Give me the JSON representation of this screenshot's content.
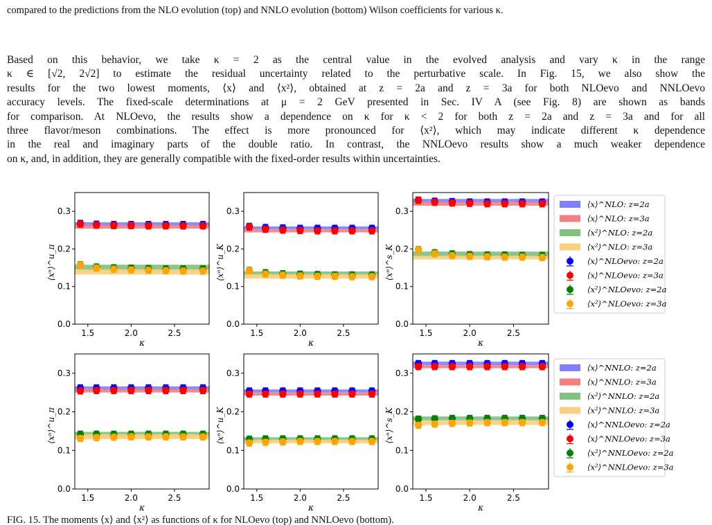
{
  "caption_top": "compared to the predictions from the NLO evolution (top) and NNLO evolution (bottom) Wilson coefficients for various κ.",
  "paragraph_lines": [
    "Based on this behavior, we take κ = 2 as the central value in the evolved analysis and vary κ in the range",
    "κ ∈ [√2, 2√2] to estimate the residual uncertainty related to the perturbative scale. In Fig. 15, we also show the",
    "results for the two lowest moments, ⟨x⟩ and ⟨x²⟩, obtained at z = 2a and z = 3a for both NLOevo and NNLOevo",
    "accuracy levels. The fixed-scale determinations at μ = 2 GeV presented in Sec. IV A (see Fig. 8) are shown as bands",
    "for comparison. At NLOevo, the results show a dependence on κ for κ < 2 for both z = 2a and z = 3a and for all",
    "three flavor/meson combinations. The effect is more pronounced for ⟨x²⟩, which may indicate different κ dependence",
    "in the real and imaginary parts of the double ratio. In contrast, the NNLOevo results show a much weaker dependence",
    "on κ, and, in addition, they are generally compatible with the fixed-order results within uncertainties."
  ],
  "caption_bottom": "FIG. 15. The moments ⟨x⟩ and ⟨x²⟩ as functions of κ for NLOevo (top) and NNLOevo (bottom).",
  "colors": {
    "blue_band": "#8080ff",
    "red_band": "#f28080",
    "green_band": "#80c080",
    "orange_band": "#f8d080",
    "blue_point": "#0000ff",
    "red_point": "#ff0000",
    "green_point": "#008000",
    "orange_point": "#ffa500"
  },
  "legends": [
    {
      "entries": [
        {
          "label": "⟨x⟩^NLO: z=2a",
          "kind": "band",
          "color": "blue"
        },
        {
          "label": "⟨x⟩^NLO: z=3a",
          "kind": "band",
          "color": "red"
        },
        {
          "label": "⟨x²⟩^NLO: z=2a",
          "kind": "band",
          "color": "green"
        },
        {
          "label": "⟨x²⟩^NLO: z=3a",
          "kind": "band",
          "color": "orange"
        },
        {
          "label": "⟨x⟩^NLOevo: z=2a",
          "kind": "point",
          "color": "blue"
        },
        {
          "label": "⟨x⟩^NLOevo: z=3a",
          "kind": "point",
          "color": "red"
        },
        {
          "label": "⟨x²⟩^NLOevo: z=2a",
          "kind": "point",
          "color": "green"
        },
        {
          "label": "⟨x²⟩^NLOevo: z=3a",
          "kind": "point",
          "color": "orange"
        }
      ]
    },
    {
      "entries": [
        {
          "label": "⟨x⟩^NNLO: z=2a",
          "kind": "band",
          "color": "blue"
        },
        {
          "label": "⟨x⟩^NNLO: z=3a",
          "kind": "band",
          "color": "red"
        },
        {
          "label": "⟨x²⟩^NNLO: z=2a",
          "kind": "band",
          "color": "green"
        },
        {
          "label": "⟨x²⟩^NNLO: z=3a",
          "kind": "band",
          "color": "orange"
        },
        {
          "label": "⟨x⟩^NNLOevo: z=2a",
          "kind": "point",
          "color": "blue"
        },
        {
          "label": "⟨x⟩^NNLOevo: z=3a",
          "kind": "point",
          "color": "red"
        },
        {
          "label": "⟨x²⟩^NNLOevo: z=2a",
          "kind": "point",
          "color": "green"
        },
        {
          "label": "⟨x²⟩^NNLOevo: z=3a",
          "kind": "point",
          "color": "orange"
        }
      ]
    }
  ],
  "chart_data": [
    {
      "type": "scatter",
      "panel": "top-left",
      "ylabel": "⟨xⁿ⟩^u_π",
      "xlabel": "κ",
      "xlim": [
        1.35,
        2.9
      ],
      "ylim": [
        0.0,
        0.35
      ],
      "xticks": [
        "1.5",
        "2.0",
        "2.5"
      ],
      "yticks": [
        "0.0",
        "0.1",
        "0.2",
        "0.3"
      ],
      "x": [
        1.414,
        1.6,
        1.8,
        2.0,
        2.2,
        2.4,
        2.6,
        2.828
      ],
      "series": [
        {
          "color": "blue",
          "band": [
            0.261,
            0.271
          ],
          "values": [
            0.268,
            0.266,
            0.265,
            0.265,
            0.265,
            0.265,
            0.265,
            0.265
          ]
        },
        {
          "color": "red",
          "band": [
            0.254,
            0.264
          ],
          "values": [
            0.266,
            0.263,
            0.262,
            0.262,
            0.261,
            0.261,
            0.261,
            0.261
          ]
        },
        {
          "color": "green",
          "band": [
            0.141,
            0.158
          ],
          "values": [
            0.158,
            0.152,
            0.15,
            0.149,
            0.148,
            0.147,
            0.147,
            0.147
          ]
        },
        {
          "color": "orange",
          "band": [
            0.132,
            0.146
          ],
          "values": [
            0.157,
            0.149,
            0.146,
            0.144,
            0.143,
            0.142,
            0.141,
            0.141
          ]
        }
      ]
    },
    {
      "type": "scatter",
      "panel": "top-middle",
      "ylabel": "⟨xⁿ⟩^u_K",
      "xlabel": "κ",
      "xlim": [
        1.35,
        2.9
      ],
      "ylim": [
        0.0,
        0.35
      ],
      "xticks": [
        "1.5",
        "2.0",
        "2.5"
      ],
      "yticks": [
        "0.0",
        "0.1",
        "0.2",
        "0.3"
      ],
      "x": [
        1.414,
        1.6,
        1.8,
        2.0,
        2.2,
        2.4,
        2.6,
        2.828
      ],
      "series": [
        {
          "color": "blue",
          "band": [
            0.252,
            0.26
          ],
          "values": [
            0.26,
            0.257,
            0.256,
            0.255,
            0.255,
            0.255,
            0.255,
            0.255
          ]
        },
        {
          "color": "red",
          "band": [
            0.244,
            0.252
          ],
          "values": [
            0.258,
            0.252,
            0.25,
            0.249,
            0.248,
            0.248,
            0.248,
            0.248
          ]
        },
        {
          "color": "green",
          "band": [
            0.128,
            0.14
          ],
          "values": [
            0.143,
            0.137,
            0.134,
            0.133,
            0.132,
            0.131,
            0.131,
            0.131
          ]
        },
        {
          "color": "orange",
          "band": [
            0.121,
            0.133
          ],
          "values": [
            0.142,
            0.133,
            0.13,
            0.128,
            0.127,
            0.127,
            0.126,
            0.126
          ]
        }
      ]
    },
    {
      "type": "scatter",
      "panel": "top-right",
      "ylabel": "⟨xⁿ⟩^s_K",
      "xlabel": "κ",
      "xlim": [
        1.35,
        2.9
      ],
      "ylim": [
        0.0,
        0.35
      ],
      "xticks": [
        "1.5",
        "2.0",
        "2.5"
      ],
      "yticks": [
        "0.0",
        "0.1",
        "0.2",
        "0.3"
      ],
      "x": [
        1.414,
        1.6,
        1.8,
        2.0,
        2.2,
        2.4,
        2.6,
        2.828
      ],
      "series": [
        {
          "color": "blue",
          "band": [
            0.323,
            0.333
          ],
          "values": [
            0.33,
            0.327,
            0.326,
            0.325,
            0.325,
            0.325,
            0.325,
            0.325
          ]
        },
        {
          "color": "red",
          "band": [
            0.315,
            0.325
          ],
          "values": [
            0.329,
            0.324,
            0.322,
            0.321,
            0.32,
            0.32,
            0.32,
            0.32
          ]
        },
        {
          "color": "green",
          "band": [
            0.179,
            0.193
          ],
          "values": [
            0.198,
            0.19,
            0.187,
            0.185,
            0.184,
            0.184,
            0.183,
            0.183
          ]
        },
        {
          "color": "orange",
          "band": [
            0.172,
            0.182
          ],
          "values": [
            0.197,
            0.187,
            0.182,
            0.18,
            0.179,
            0.178,
            0.178,
            0.177
          ]
        }
      ]
    },
    {
      "type": "scatter",
      "panel": "bottom-left",
      "ylabel": "⟨xⁿ⟩^u_π",
      "xlabel": "κ",
      "xlim": [
        1.35,
        2.9
      ],
      "ylim": [
        0.0,
        0.35
      ],
      "xticks": [
        "1.5",
        "2.0",
        "2.5"
      ],
      "yticks": [
        "0.0",
        "0.1",
        "0.2",
        "0.3"
      ],
      "x": [
        1.414,
        1.6,
        1.8,
        2.0,
        2.2,
        2.4,
        2.6,
        2.828
      ],
      "series": [
        {
          "color": "blue",
          "band": [
            0.256,
            0.266
          ],
          "values": [
            0.262,
            0.262,
            0.262,
            0.262,
            0.262,
            0.262,
            0.262,
            0.262
          ]
        },
        {
          "color": "red",
          "band": [
            0.25,
            0.259
          ],
          "values": [
            0.254,
            0.255,
            0.255,
            0.255,
            0.255,
            0.255,
            0.255,
            0.255
          ]
        },
        {
          "color": "green",
          "band": [
            0.135,
            0.148
          ],
          "values": [
            0.142,
            0.142,
            0.142,
            0.142,
            0.142,
            0.142,
            0.142,
            0.142
          ]
        },
        {
          "color": "orange",
          "band": [
            0.129,
            0.142
          ],
          "values": [
            0.131,
            0.133,
            0.134,
            0.135,
            0.135,
            0.135,
            0.135,
            0.135
          ]
        }
      ]
    },
    {
      "type": "scatter",
      "panel": "bottom-middle",
      "ylabel": "⟨xⁿ⟩^u_K",
      "xlabel": "κ",
      "xlim": [
        1.35,
        2.9
      ],
      "ylim": [
        0.0,
        0.35
      ],
      "xticks": [
        "1.5",
        "2.0",
        "2.5"
      ],
      "yticks": [
        "0.0",
        "0.1",
        "0.2",
        "0.3"
      ],
      "x": [
        1.414,
        1.6,
        1.8,
        2.0,
        2.2,
        2.4,
        2.6,
        2.828
      ],
      "series": [
        {
          "color": "blue",
          "band": [
            0.25,
            0.258
          ],
          "values": [
            0.254,
            0.254,
            0.254,
            0.254,
            0.254,
            0.254,
            0.254,
            0.254
          ]
        },
        {
          "color": "red",
          "band": [
            0.242,
            0.25
          ],
          "values": [
            0.246,
            0.246,
            0.246,
            0.246,
            0.246,
            0.246,
            0.246,
            0.246
          ]
        },
        {
          "color": "green",
          "band": [
            0.124,
            0.134
          ],
          "values": [
            0.129,
            0.13,
            0.13,
            0.13,
            0.13,
            0.13,
            0.13,
            0.13
          ]
        },
        {
          "color": "orange",
          "band": [
            0.118,
            0.128
          ],
          "values": [
            0.119,
            0.121,
            0.122,
            0.123,
            0.123,
            0.123,
            0.123,
            0.123
          ]
        }
      ]
    },
    {
      "type": "scatter",
      "panel": "bottom-right",
      "ylabel": "⟨xⁿ⟩^s_K",
      "xlabel": "κ",
      "xlim": [
        1.35,
        2.9
      ],
      "ylim": [
        0.0,
        0.35
      ],
      "xticks": [
        "1.5",
        "2.0",
        "2.5"
      ],
      "yticks": [
        "0.0",
        "0.1",
        "0.2",
        "0.3"
      ],
      "x": [
        1.414,
        1.6,
        1.8,
        2.0,
        2.2,
        2.4,
        2.6,
        2.828
      ],
      "series": [
        {
          "color": "blue",
          "band": [
            0.321,
            0.33
          ],
          "values": [
            0.325,
            0.325,
            0.325,
            0.325,
            0.325,
            0.325,
            0.325,
            0.325
          ]
        },
        {
          "color": "red",
          "band": [
            0.313,
            0.321
          ],
          "values": [
            0.317,
            0.317,
            0.317,
            0.317,
            0.317,
            0.317,
            0.317,
            0.317
          ]
        },
        {
          "color": "green",
          "band": [
            0.178,
            0.188
          ],
          "values": [
            0.181,
            0.182,
            0.183,
            0.183,
            0.183,
            0.183,
            0.183,
            0.183
          ]
        },
        {
          "color": "orange",
          "band": [
            0.166,
            0.178
          ],
          "values": [
            0.165,
            0.168,
            0.17,
            0.171,
            0.172,
            0.172,
            0.172,
            0.172
          ]
        }
      ]
    }
  ]
}
